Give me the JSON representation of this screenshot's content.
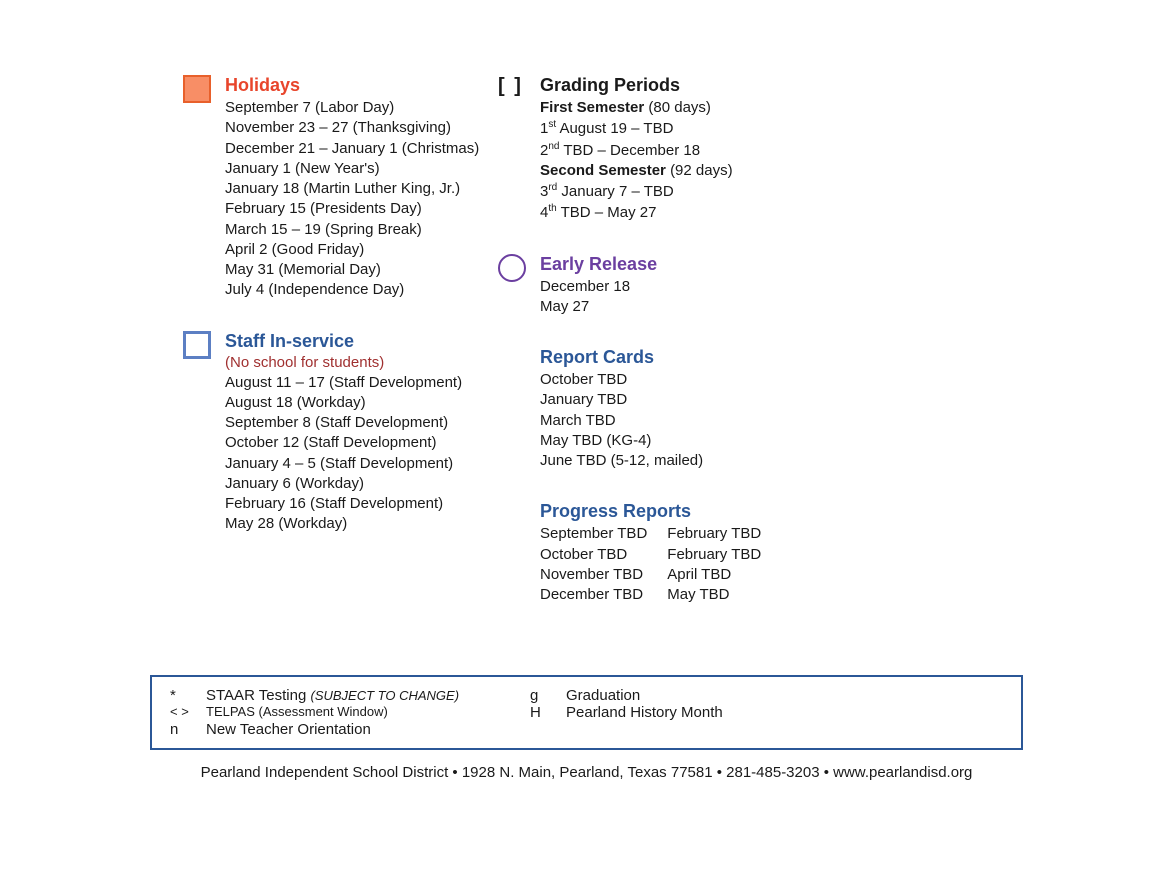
{
  "holidays": {
    "title": "Holidays",
    "items": [
      "September 7 (Labor Day)",
      "November 23 – 27 (Thanksgiving)",
      "December 21 – January 1 (Christmas)",
      "January 1  (New Year's)",
      "January 18 (Martin Luther King, Jr.)",
      "February 15 (Presidents Day)",
      "March 15 – 19 (Spring Break)",
      "April 2 (Good Friday)",
      "May 31 (Memorial Day)",
      "July 4 (Independence Day)"
    ]
  },
  "staff": {
    "title": "Staff In-service",
    "subtitle": "(No school for students)",
    "items": [
      "August 11 – 17 (Staff Development)",
      "August 18 (Workday)",
      "September 8 (Staff Development)",
      "October 12 (Staff Development)",
      "January 4 – 5 (Staff Development)",
      "January 6  (Workday)",
      "February 16 (Staff Development)",
      "May 28 (Workday)"
    ]
  },
  "grading": {
    "title": "Grading Periods",
    "sem1_label": "First Semester",
    "sem1_days": "(80 days)",
    "sem1_p1_ord": "1",
    "sem1_p1_sup": "st",
    "sem1_p1_text": " August 19  – TBD",
    "sem1_p2_ord": "2",
    "sem1_p2_sup": "nd",
    "sem1_p2_text": " TBD  – December 18",
    "sem2_label": "Second Semester",
    "sem2_days": "(92 days)",
    "sem2_p1_ord": "3",
    "sem2_p1_sup": "rd",
    "sem2_p1_text": " January 7 – TBD",
    "sem2_p2_ord": "4",
    "sem2_p2_sup": "th",
    "sem2_p2_text": " TBD – May 27"
  },
  "early_release": {
    "title": "Early Release",
    "items": [
      "December 18",
      "May 27"
    ]
  },
  "report_cards": {
    "title": "Report Cards",
    "items": [
      "October TBD",
      "January TBD",
      "March TBD",
      "May TBD (KG-4)",
      "June TBD (5-12, mailed)"
    ]
  },
  "progress": {
    "title": "Progress Reports",
    "col1": [
      "September TBD",
      "October TBD",
      "November TBD",
      "December TBD"
    ],
    "col2": [
      "February TBD",
      "February TBD",
      "April TBD",
      "May TBD"
    ]
  },
  "legend": {
    "r1c1_sym": "*",
    "r1c1_text": "STAAR Testing ",
    "r1c1_note": "(SUBJECT TO CHANGE)",
    "r1c2_sym": "g",
    "r1c2_text": "Graduation",
    "r2c1_sym": "< >",
    "r2c1_text": "TELPAS ",
    "r2c1_note": "(Assessment Window)",
    "r2c2_sym": "H",
    "r2c2_text": "Pearland History Month",
    "r3c1_sym": "n",
    "r3c1_text": "New Teacher Orientation"
  },
  "footer": "Pearland Independent School District  •  1928 N. Main, Pearland, Texas 77581  • 281-485-3203  • www.pearlandisd.org",
  "colors": {
    "red": "#e8452b",
    "blue": "#2b5797",
    "purple": "#6b3fa0",
    "orange_fill": "#f88e66",
    "orange_border": "#e8602b",
    "blue_border": "#5c7fc3",
    "subtitle_red": "#a03030"
  }
}
